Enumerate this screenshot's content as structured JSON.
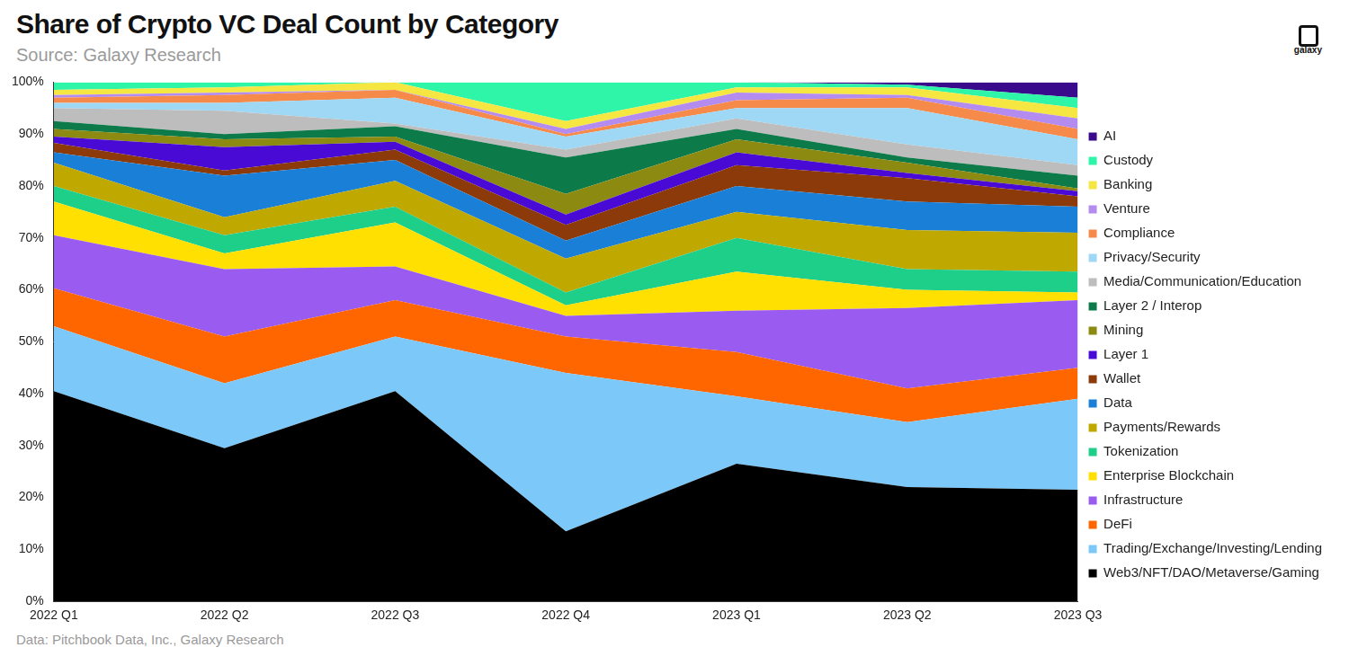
{
  "chart_data": {
    "type": "area",
    "title": "Share of Crypto VC Deal Count by Category",
    "subtitle": "Source: Galaxy Research",
    "annotations": [
      "Data: Pitchbook Data, Inc., Galaxy Research",
      "galaxy"
    ],
    "categories": [
      "2022 Q1",
      "2022 Q2",
      "2022 Q3",
      "2022 Q4",
      "2023 Q1",
      "2023 Q2",
      "2023 Q3"
    ],
    "ylim": [
      0,
      100
    ],
    "yticks": [
      {
        "value": 0,
        "label": "0%"
      },
      {
        "value": 10,
        "label": "10%"
      },
      {
        "value": 20,
        "label": "20%"
      },
      {
        "value": 30,
        "label": "30%"
      },
      {
        "value": 40,
        "label": "40%"
      },
      {
        "value": 50,
        "label": "50%"
      },
      {
        "value": 60,
        "label": "60%"
      },
      {
        "value": 70,
        "label": "70%"
      },
      {
        "value": 80,
        "label": "80%"
      },
      {
        "value": 90,
        "label": "90%"
      },
      {
        "value": 100,
        "label": "100%"
      }
    ],
    "stacked": true,
    "grid": false,
    "legend": "right",
    "series": [
      {
        "name": "Web3/NFT/DAO/Metaverse/Gaming",
        "color": "#000000",
        "values": [
          40.5,
          29.5,
          40.5,
          13.5,
          26.5,
          22,
          21.5
        ]
      },
      {
        "name": "Trading/Exchange/Investing/Lending",
        "color": "#7cc8f8",
        "values": [
          12.5,
          12.5,
          10.5,
          30.5,
          13,
          12.5,
          17.5
        ]
      },
      {
        "name": "DeFi",
        "color": "#ff6600",
        "values": [
          7.3,
          9,
          7,
          7,
          8.5,
          6.5,
          6
        ]
      },
      {
        "name": "Infrastructure",
        "color": "#9a5cf0",
        "values": [
          10.2,
          13,
          6.5,
          4,
          8,
          15.5,
          13
        ]
      },
      {
        "name": "Enterprise Blockchain",
        "color": "#ffe000",
        "values": [
          6.5,
          3,
          8.5,
          2,
          7.5,
          3.5,
          1.5
        ]
      },
      {
        "name": "Tokenization",
        "color": "#1ecf8a",
        "values": [
          3,
          3.5,
          3,
          2.5,
          6.5,
          4,
          4
        ]
      },
      {
        "name": "Payments/Rewards",
        "color": "#bfa800",
        "values": [
          4.5,
          3.5,
          5,
          6.5,
          5,
          7.5,
          7.5
        ]
      },
      {
        "name": "Data",
        "color": "#1a7fd6",
        "values": [
          2,
          8,
          4,
          3.5,
          5,
          5.5,
          5
        ]
      },
      {
        "name": "Wallet",
        "color": "#8c3a0a",
        "values": [
          1.8,
          1,
          2,
          3,
          4,
          4.5,
          2
        ]
      },
      {
        "name": "Layer 1",
        "color": "#4a0ad6",
        "values": [
          1.2,
          4.5,
          1.5,
          2,
          2.5,
          1,
          1
        ]
      },
      {
        "name": "Mining",
        "color": "#8c8a10",
        "values": [
          1.5,
          1.5,
          1,
          4,
          2.5,
          2,
          0.5
        ]
      },
      {
        "name": "Layer 2 / Interop",
        "color": "#0d7a4a",
        "values": [
          1.5,
          1,
          2,
          7,
          2,
          1,
          2.5
        ]
      },
      {
        "name": "Media/Communication/Education",
        "color": "#bdbdbd",
        "values": [
          2.5,
          4.5,
          0.5,
          1.5,
          2,
          2.5,
          2
        ]
      },
      {
        "name": "Privacy/Security",
        "color": "#9fd8f5",
        "values": [
          1,
          1.5,
          5,
          2.5,
          2,
          7,
          5
        ]
      },
      {
        "name": "Compliance",
        "color": "#f58a4a",
        "values": [
          1,
          1.5,
          1.5,
          0.5,
          1.5,
          2,
          2
        ]
      },
      {
        "name": "Venture",
        "color": "#b48cf0",
        "values": [
          0.5,
          0.5,
          0,
          1,
          1.5,
          0.5,
          2
        ]
      },
      {
        "name": "Banking",
        "color": "#f5e642",
        "values": [
          1,
          1,
          1.5,
          1.5,
          1,
          1.5,
          2
        ]
      },
      {
        "name": "Custody",
        "color": "#2ef5a8",
        "values": [
          1.5,
          1,
          0,
          7.5,
          1,
          0.5,
          2
        ]
      },
      {
        "name": "AI",
        "color": "#3a0a8c",
        "values": [
          0,
          0,
          0,
          0,
          0,
          0.5,
          3
        ]
      }
    ]
  }
}
